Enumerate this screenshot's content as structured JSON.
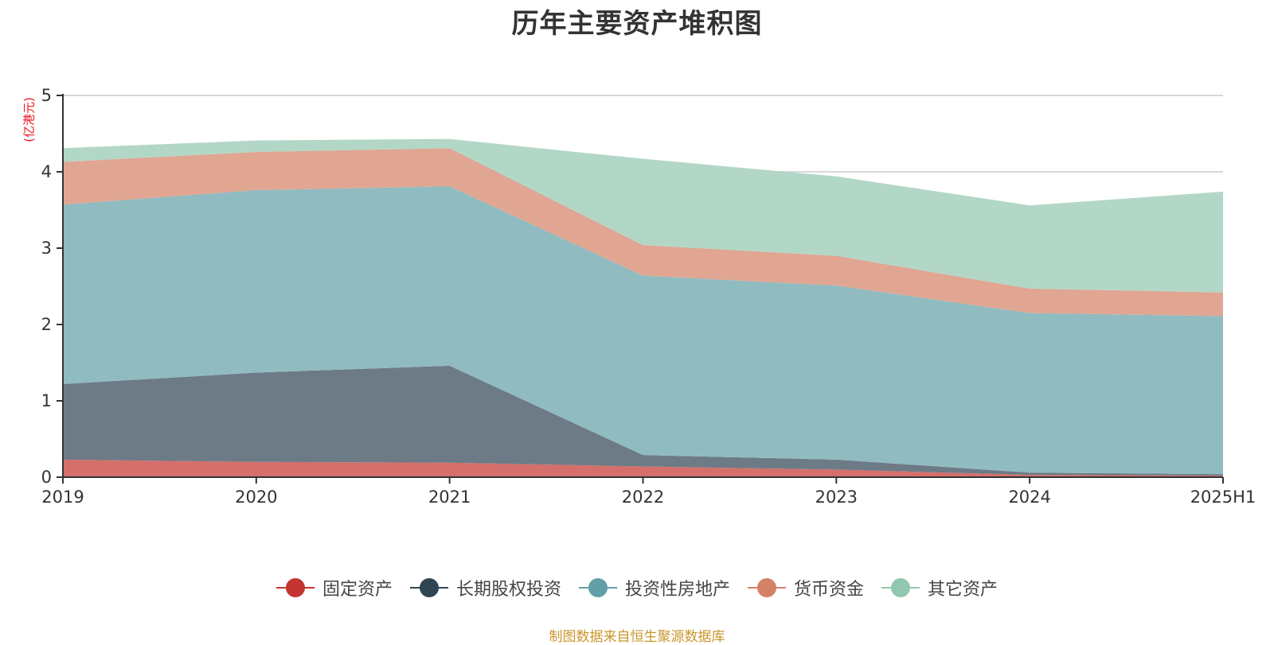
{
  "chart_data": {
    "type": "area",
    "stacked": true,
    "title": "历年主要资产堆积图",
    "unit_label": "(亿港元)",
    "xlabel": "",
    "ylabel": "(亿港元)",
    "ylim": [
      0,
      5
    ],
    "yticks": [
      0,
      1,
      2,
      3,
      4,
      5
    ],
    "grid": true,
    "legend_position": "bottom",
    "categories": [
      "2019",
      "2020",
      "2021",
      "2022",
      "2023",
      "2024",
      "2025H1"
    ],
    "series": [
      {
        "name": "固定资产",
        "color": "#c23531",
        "fill": "#d46f6b",
        "values": [
          0.23,
          0.2,
          0.19,
          0.14,
          0.1,
          0.03,
          0.02
        ]
      },
      {
        "name": "长期股权投资",
        "color": "#2f4554",
        "fill": "#6d7b86",
        "values": [
          0.99,
          1.17,
          1.27,
          0.15,
          0.13,
          0.03,
          0.02
        ]
      },
      {
        "name": "投资性房地产",
        "color": "#61a0a8",
        "fill": "#90bbc1",
        "values": [
          2.35,
          2.39,
          2.35,
          2.35,
          2.28,
          2.09,
          2.07
        ]
      },
      {
        "name": "货币资金",
        "color": "#d48265",
        "fill": "#e0a692",
        "values": [
          0.56,
          0.5,
          0.5,
          0.4,
          0.39,
          0.32,
          0.31
        ]
      },
      {
        "name": "其它资产",
        "color": "#91c7ae",
        "fill": "#b2d7c6",
        "values": [
          0.18,
          0.15,
          0.12,
          1.13,
          1.04,
          1.09,
          1.32
        ]
      }
    ],
    "source_note": "制图数据来自恒生聚源数据库"
  }
}
